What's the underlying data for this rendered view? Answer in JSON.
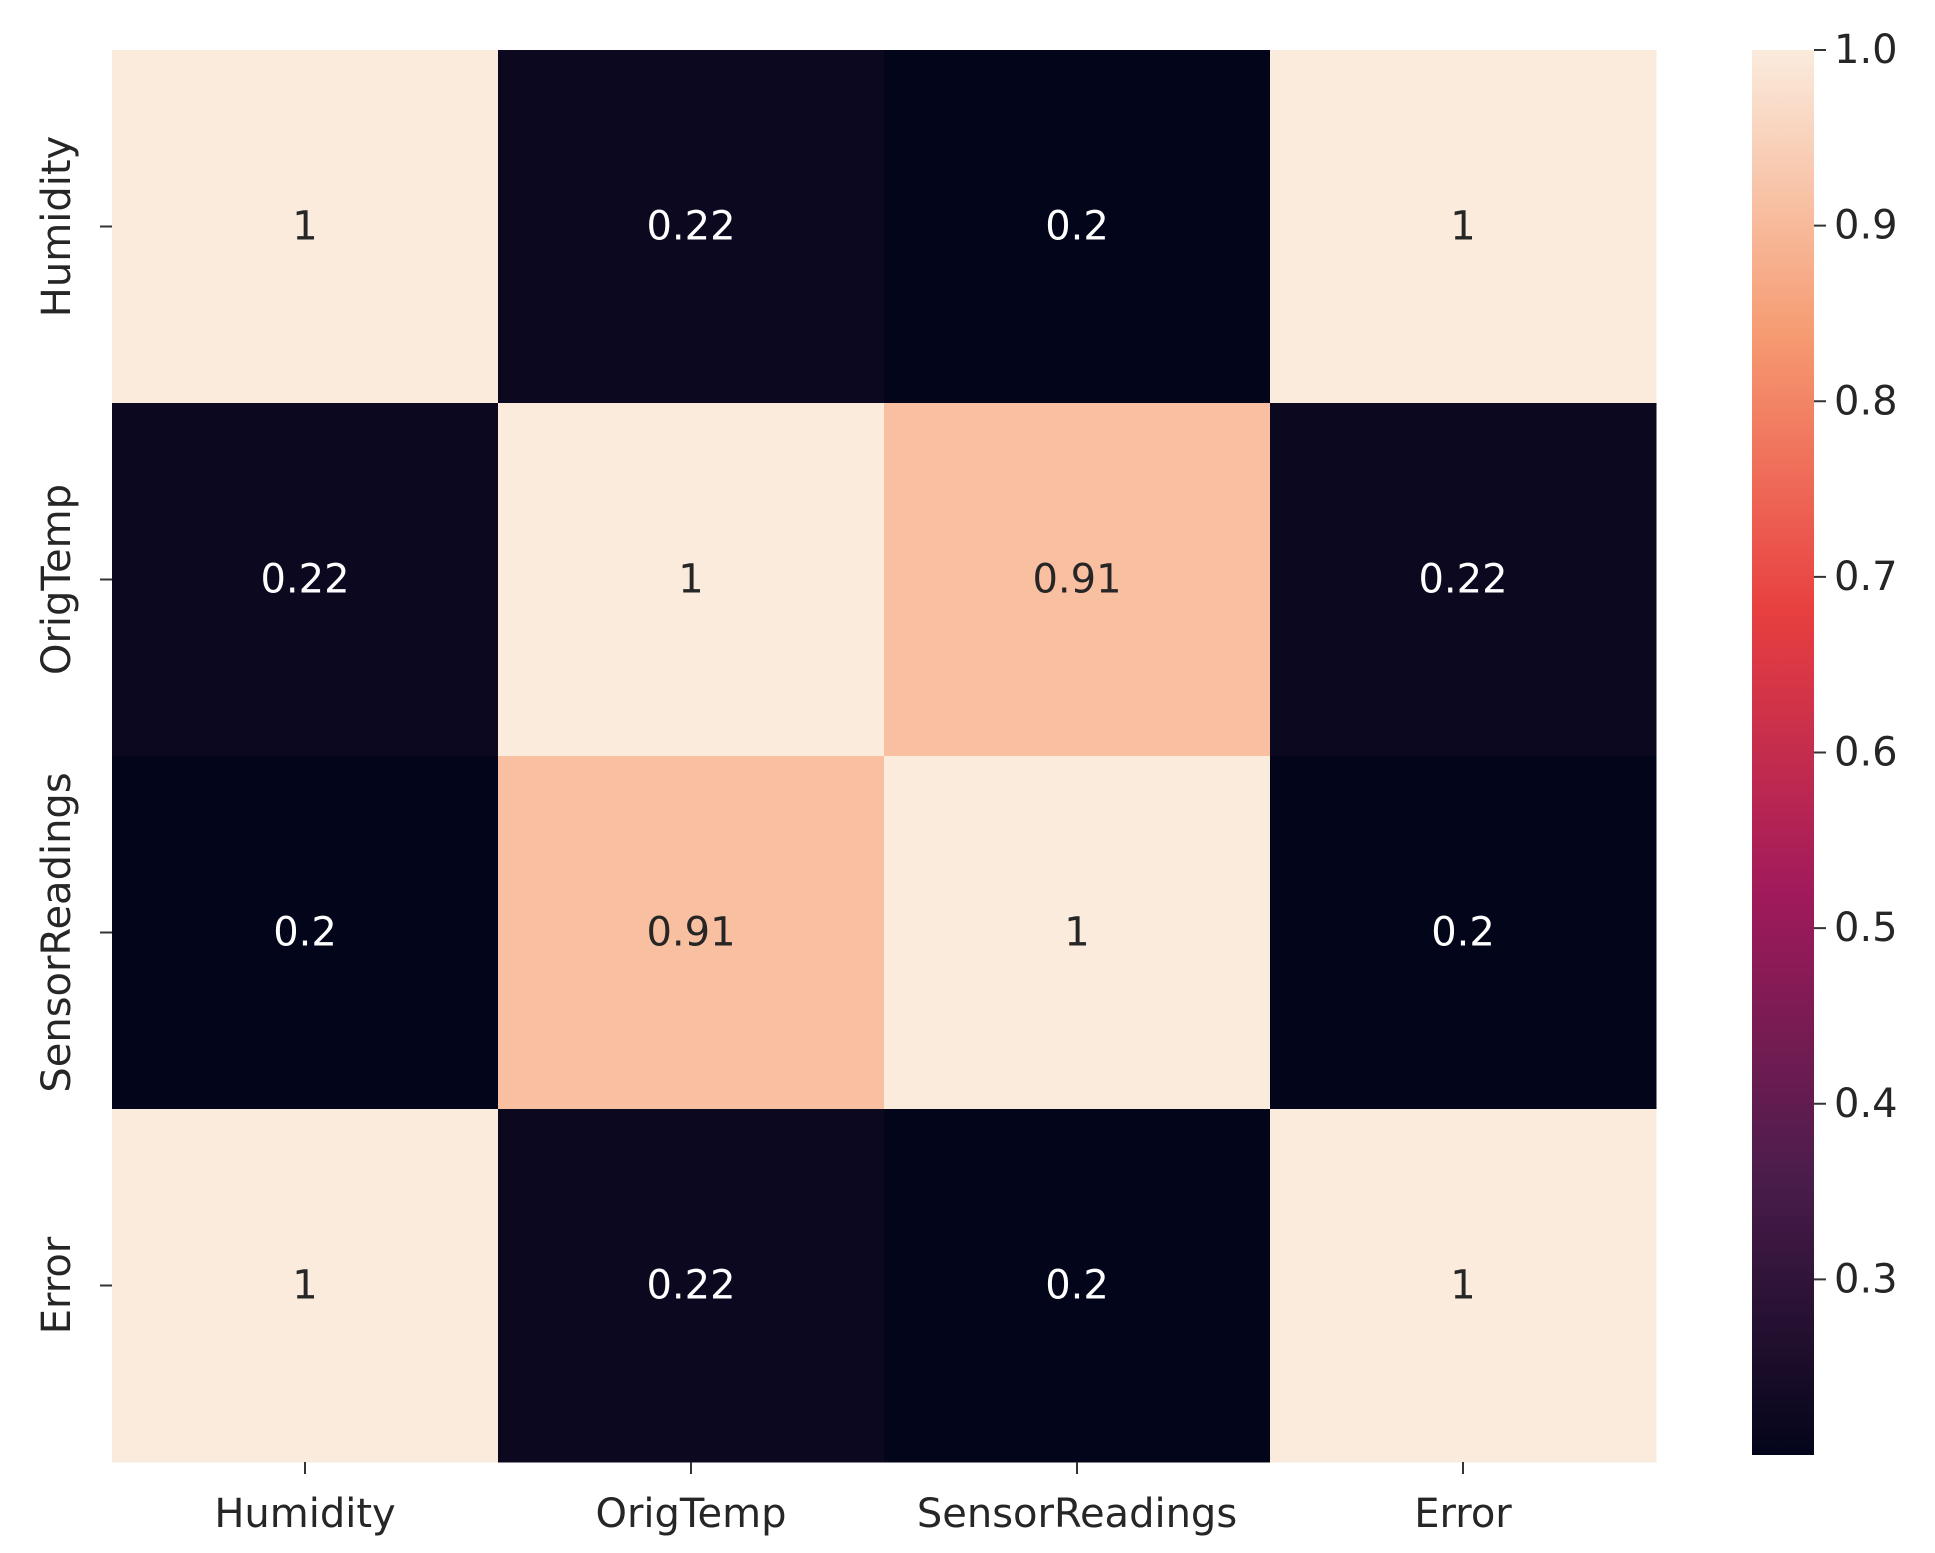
{
  "chart_data": {
    "type": "heatmap",
    "title": "",
    "xlabel": "",
    "ylabel": "",
    "row_labels": [
      "Humidity",
      "OrigTemp",
      "SensorReadings",
      "Error"
    ],
    "col_labels": [
      "Humidity",
      "OrigTemp",
      "SensorReadings",
      "Error"
    ],
    "values": [
      [
        1,
        0.22,
        0.2,
        1
      ],
      [
        0.22,
        1,
        0.91,
        0.22
      ],
      [
        0.2,
        0.91,
        1,
        0.2
      ],
      [
        1,
        0.22,
        0.2,
        1
      ]
    ],
    "annotations": [
      [
        "1",
        "0.22",
        "0.2",
        "1"
      ],
      [
        "0.22",
        "1",
        "0.91",
        "0.22"
      ],
      [
        "0.2",
        "0.91",
        "1",
        "0.2"
      ],
      [
        "1",
        "0.22",
        "0.2",
        "1"
      ]
    ],
    "colorbar": {
      "range": [
        0.2,
        1.0
      ],
      "ticks": [
        0.3,
        0.4,
        0.5,
        0.6,
        0.7,
        0.8,
        0.9,
        1.0
      ],
      "tick_labels": [
        "0.3",
        "0.4",
        "0.5",
        "0.6",
        "0.7",
        "0.8",
        "0.9",
        "1.0"
      ],
      "colormap": "rocket"
    },
    "colormap_stops": [
      "#03051a",
      "#4c1d4b",
      "#a11a5b",
      "#e83f3f",
      "#f69c73",
      "#faebdd"
    ]
  }
}
